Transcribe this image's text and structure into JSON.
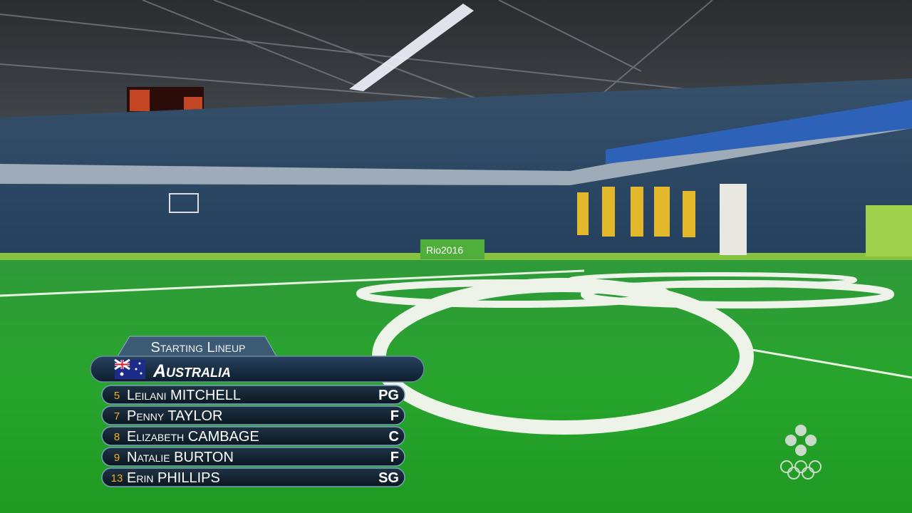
{
  "overlay": {
    "header": "Starting Lineup",
    "team": "Australia",
    "players": [
      {
        "number": "5",
        "name": "Leilani MITCHELL",
        "position": "PG"
      },
      {
        "number": "7",
        "name": "Penny TAYLOR",
        "position": "F"
      },
      {
        "number": "8",
        "name": "Elizabeth CAMBAGE",
        "position": "C"
      },
      {
        "number": "9",
        "name": "Natalie BURTON",
        "position": "F"
      },
      {
        "number": "13",
        "name": "Erin PHILLIPS",
        "position": "SG"
      }
    ]
  },
  "scene": {
    "banner": "Rio2016"
  }
}
